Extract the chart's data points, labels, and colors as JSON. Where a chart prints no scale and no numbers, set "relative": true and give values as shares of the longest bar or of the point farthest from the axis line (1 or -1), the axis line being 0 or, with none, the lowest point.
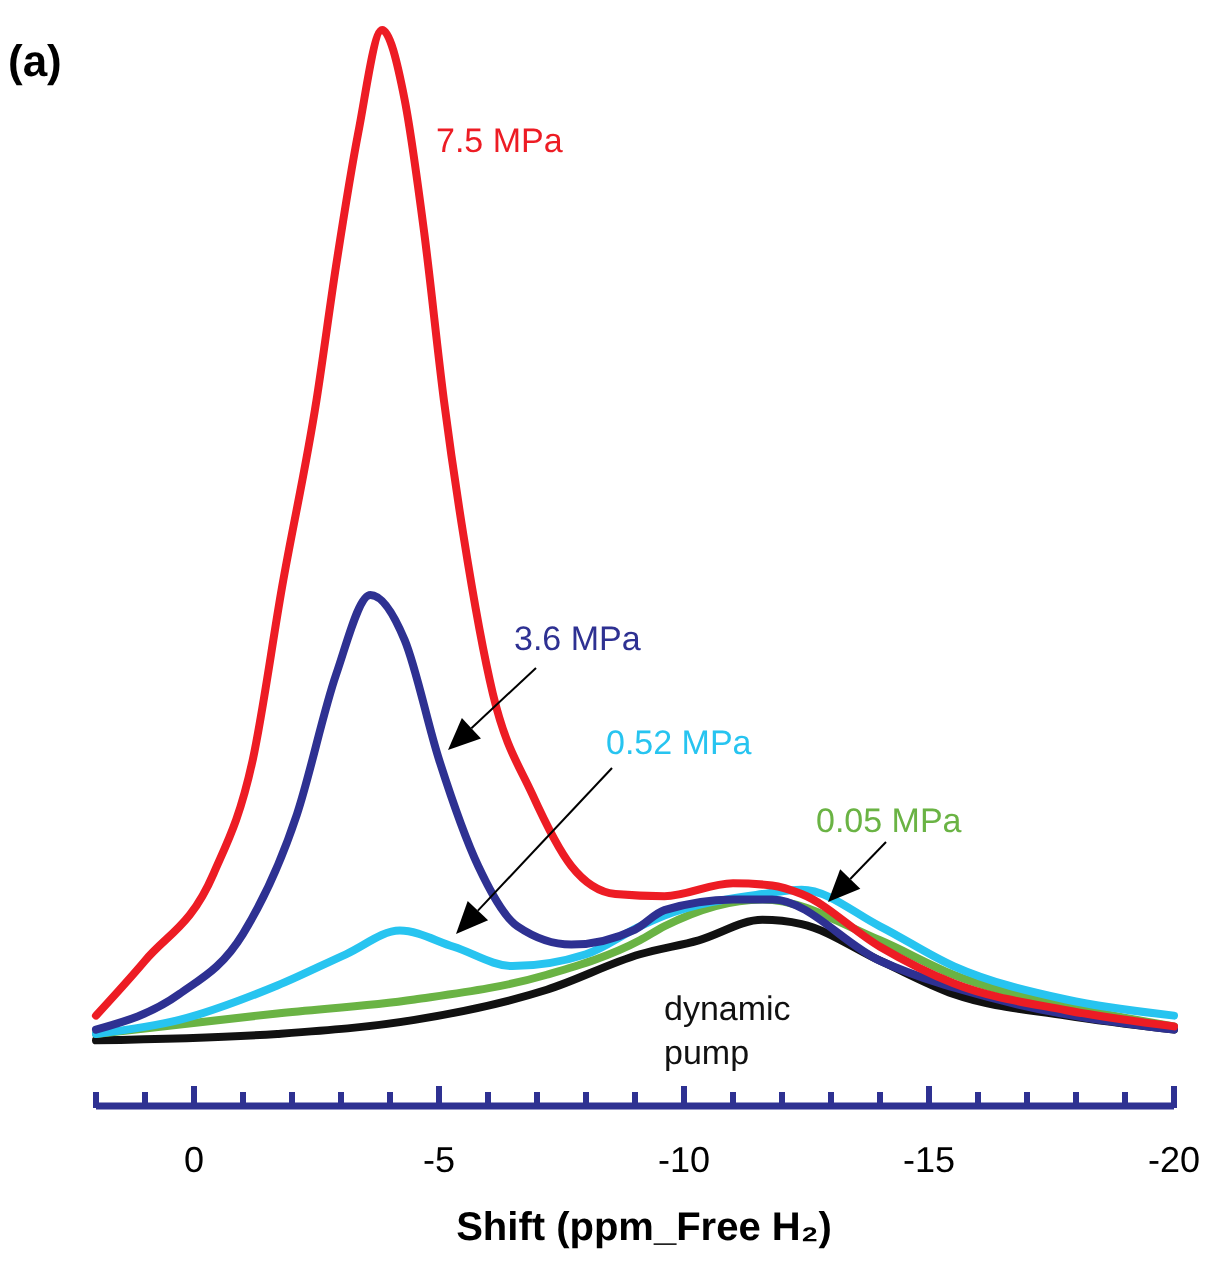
{
  "chart_data": {
    "type": "line",
    "title": "(a)",
    "xlabel": "Shift (ppm_Free H₂)",
    "relative": true,
    "xlim": [
      2,
      -20
    ],
    "xticks": [
      {
        "value": 2,
        "label": null
      },
      {
        "value": 1,
        "label": null
      },
      0,
      {
        "value": -1,
        "label": null
      },
      {
        "value": -2,
        "label": null
      },
      {
        "value": -3,
        "label": null
      },
      {
        "value": -4,
        "label": null
      },
      -5,
      {
        "value": -6,
        "label": null
      },
      {
        "value": -7,
        "label": null
      },
      {
        "value": -8,
        "label": null
      },
      {
        "value": -9,
        "label": null
      },
      -10,
      {
        "value": -11,
        "label": null
      },
      {
        "value": -12,
        "label": null
      },
      {
        "value": -13,
        "label": null
      },
      {
        "value": -14,
        "label": null
      },
      -15,
      {
        "value": -16,
        "label": null
      },
      {
        "value": -17,
        "label": null
      },
      {
        "value": -18,
        "label": null
      },
      {
        "value": -19,
        "label": null
      },
      -20
    ],
    "grid": false,
    "legend": false,
    "marker": "none",
    "line_style": "solid",
    "series": [
      {
        "name": "7.5 MPa",
        "color": "#ed1c24",
        "x": [
          2.0,
          1.0,
          -0.4,
          -1.2,
          -1.8,
          -2.5,
          -2.9,
          -3.35,
          -3.84,
          -4.3,
          -4.7,
          -5.1,
          -5.5,
          -6.1,
          -6.9,
          -7.7,
          -8.6,
          -9.6,
          -11.0,
          -11.8,
          -12.4,
          -14.0,
          -15.5,
          -17.8,
          -20
        ],
        "values": [
          0.084,
          0.135,
          0.216,
          0.322,
          0.483,
          0.656,
          0.781,
          0.904,
          1,
          0.935,
          0.811,
          0.656,
          0.53,
          0.383,
          0.29,
          0.223,
          0.197,
          0.195,
          0.207,
          0.205,
          0.197,
          0.148,
          0.114,
          0.089,
          0.074
        ]
      },
      {
        "name": "3.6 MPa",
        "color": "#2e3192",
        "x": [
          2.0,
          0.3,
          -1.0,
          -2.1,
          -2.9,
          -3.6,
          -4.3,
          -5.0,
          -5.8,
          -6.6,
          -7.7,
          -9.0,
          -9.6,
          -11.0,
          -11.8,
          -14.0,
          -16.4,
          -20
        ],
        "values": [
          0.071,
          0.104,
          0.16,
          0.271,
          0.401,
          0.475,
          0.433,
          0.322,
          0.223,
          0.167,
          0.15,
          0.164,
          0.182,
          0.192,
          0.192,
          0.135,
          0.099,
          0.071
        ]
      },
      {
        "name": "0.52 MPa",
        "color": "#27c4f0",
        "x": [
          2.0,
          0.3,
          -1.7,
          -3.1,
          -4.2,
          -5.3,
          -6.5,
          -8.0,
          -9.1,
          -9.6,
          -11.6,
          -12.4,
          -14.0,
          -15.5,
          -17.8,
          -20
        ],
        "values": [
          0.067,
          0.08,
          0.112,
          0.141,
          0.163,
          0.148,
          0.13,
          0.141,
          0.167,
          0.177,
          0.197,
          0.201,
          0.167,
          0.13,
          0.099,
          0.084
        ]
      },
      {
        "name": "0.05 MPa",
        "color": "#6ab344",
        "x": [
          2.0,
          -1.7,
          -4.5,
          -7.2,
          -9.1,
          -9.6,
          -11.6,
          -14.0,
          -15.5,
          -17.8,
          -20
        ],
        "values": [
          0.067,
          0.086,
          0.099,
          0.122,
          0.154,
          0.167,
          0.192,
          0.154,
          0.122,
          0.093,
          0.074
        ]
      },
      {
        "name": "dynamic pump",
        "color": "#111111",
        "x": [
          2.0,
          -1.7,
          -4.5,
          -7.2,
          -9.1,
          -10.3,
          -11.6,
          -12.4,
          -14.0,
          -15.5,
          -17.8,
          -20
        ],
        "values": [
          0.061,
          0.067,
          0.08,
          0.108,
          0.141,
          0.154,
          0.173,
          0.169,
          0.135,
          0.104,
          0.084,
          0.071
        ]
      }
    ]
  }
}
